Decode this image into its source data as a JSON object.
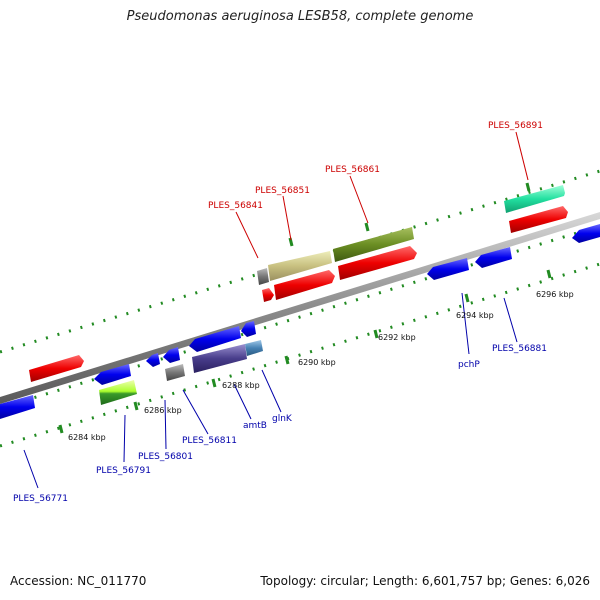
{
  "title": "Pseudomonas aeruginosa LESB58, complete genome",
  "footer": {
    "accession": "Accession: NC_011770",
    "topology": "Topology: circular; Length: 6,601,757 bp; Genes: 6,026"
  },
  "colors": {
    "backbone": "#8c8c8c",
    "tick": "#228b22",
    "forward_label": "#cc0000",
    "reverse_label": "#0000aa"
  },
  "scale_labels": [
    "6284 kbp",
    "6286 kbp",
    "6288 kbp",
    "6290 kbp",
    "6292 kbp",
    "6294 kbp",
    "6296 kbp"
  ],
  "top_labels": [
    "PLES_56841",
    "PLES_56851",
    "PLES_56861",
    "PLES_56891"
  ],
  "bottom_labels": [
    "PLES_56771",
    "PLES_56791",
    "PLES_56801",
    "PLES_56811",
    "amtB",
    "glnK",
    "pchP",
    "PLES_56881"
  ]
}
